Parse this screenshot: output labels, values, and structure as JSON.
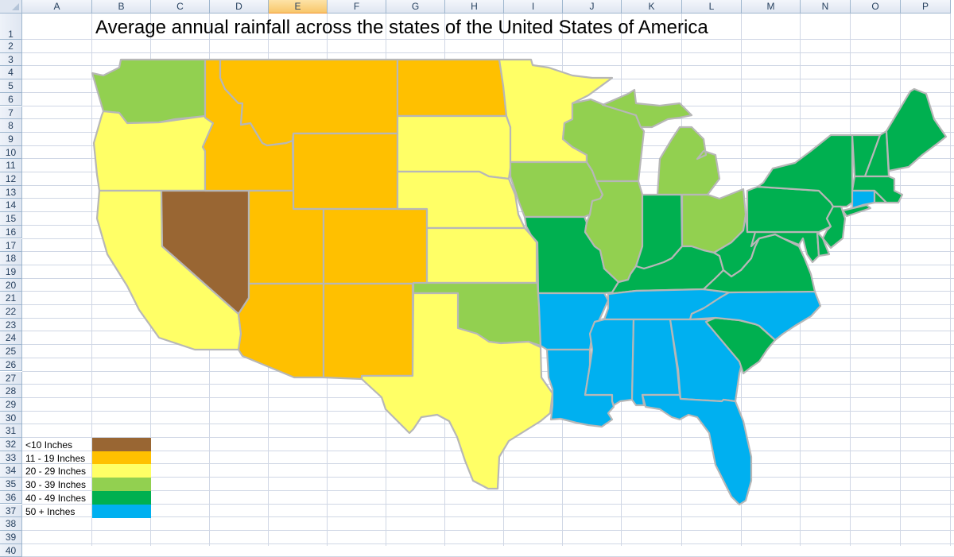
{
  "spreadsheet": {
    "columns": [
      "A",
      "B",
      "C",
      "D",
      "E",
      "F",
      "G",
      "H",
      "I",
      "J",
      "K",
      "L",
      "M",
      "N",
      "O",
      "P"
    ],
    "selected_column": "E",
    "row_numbers": [
      1,
      2,
      3,
      4,
      5,
      6,
      7,
      8,
      9,
      10,
      11,
      12,
      13,
      14,
      15,
      16,
      17,
      18,
      19,
      20,
      21,
      22,
      23,
      24,
      25,
      26,
      27,
      28,
      29,
      30,
      31,
      32,
      33,
      34,
      35,
      36,
      37,
      38,
      39,
      40
    ]
  },
  "title": "Average annual rainfall across the states of the United States of America",
  "legend": [
    {
      "key": "lt10",
      "label": "<10 Inches",
      "color": "#996633"
    },
    {
      "key": "11_19",
      "label": "11 - 19 Inches",
      "color": "#ffc000"
    },
    {
      "key": "20_29",
      "label": "20 - 29 Inches",
      "color": "#ffff66"
    },
    {
      "key": "30_39",
      "label": "30 - 39 Inches",
      "color": "#92d050"
    },
    {
      "key": "40_49",
      "label": "40 - 49 Inches",
      "color": "#00b050"
    },
    {
      "key": "50plus",
      "label": "50 + Inches",
      "color": "#00b0f0"
    }
  ],
  "state_rainfall": {
    "NV": "lt10",
    "MT": "11_19",
    "ID": "11_19",
    "WY": "11_19",
    "UT": "11_19",
    "CO": "11_19",
    "AZ": "11_19",
    "NM": "11_19",
    "ND": "11_19",
    "OR": "20_29",
    "CA": "20_29",
    "SD": "20_29",
    "NE": "20_29",
    "KS": "20_29",
    "MN": "20_29",
    "TX": "20_29",
    "WA": "30_39",
    "OK": "30_39",
    "IA": "30_39",
    "WI": "30_39",
    "MI": "30_39",
    "IL": "30_39",
    "OH": "30_39",
    "MO": "40_49",
    "IN": "40_49",
    "KY": "40_49",
    "WV": "40_49",
    "VA": "40_49",
    "MD": "40_49",
    "DE": "40_49",
    "PA": "40_49",
    "NY": "40_49",
    "NJ": "40_49",
    "VT": "40_49",
    "NH": "40_49",
    "ME": "40_49",
    "MA": "40_49",
    "RI": "40_49",
    "SC": "40_49",
    "AR": "50plus",
    "LA": "50plus",
    "MS": "50plus",
    "AL": "50plus",
    "GA": "50plus",
    "FL": "50plus",
    "TN": "50plus",
    "NC": "50plus",
    "CT": "50plus"
  },
  "map_border_color": "#b7b7b7"
}
